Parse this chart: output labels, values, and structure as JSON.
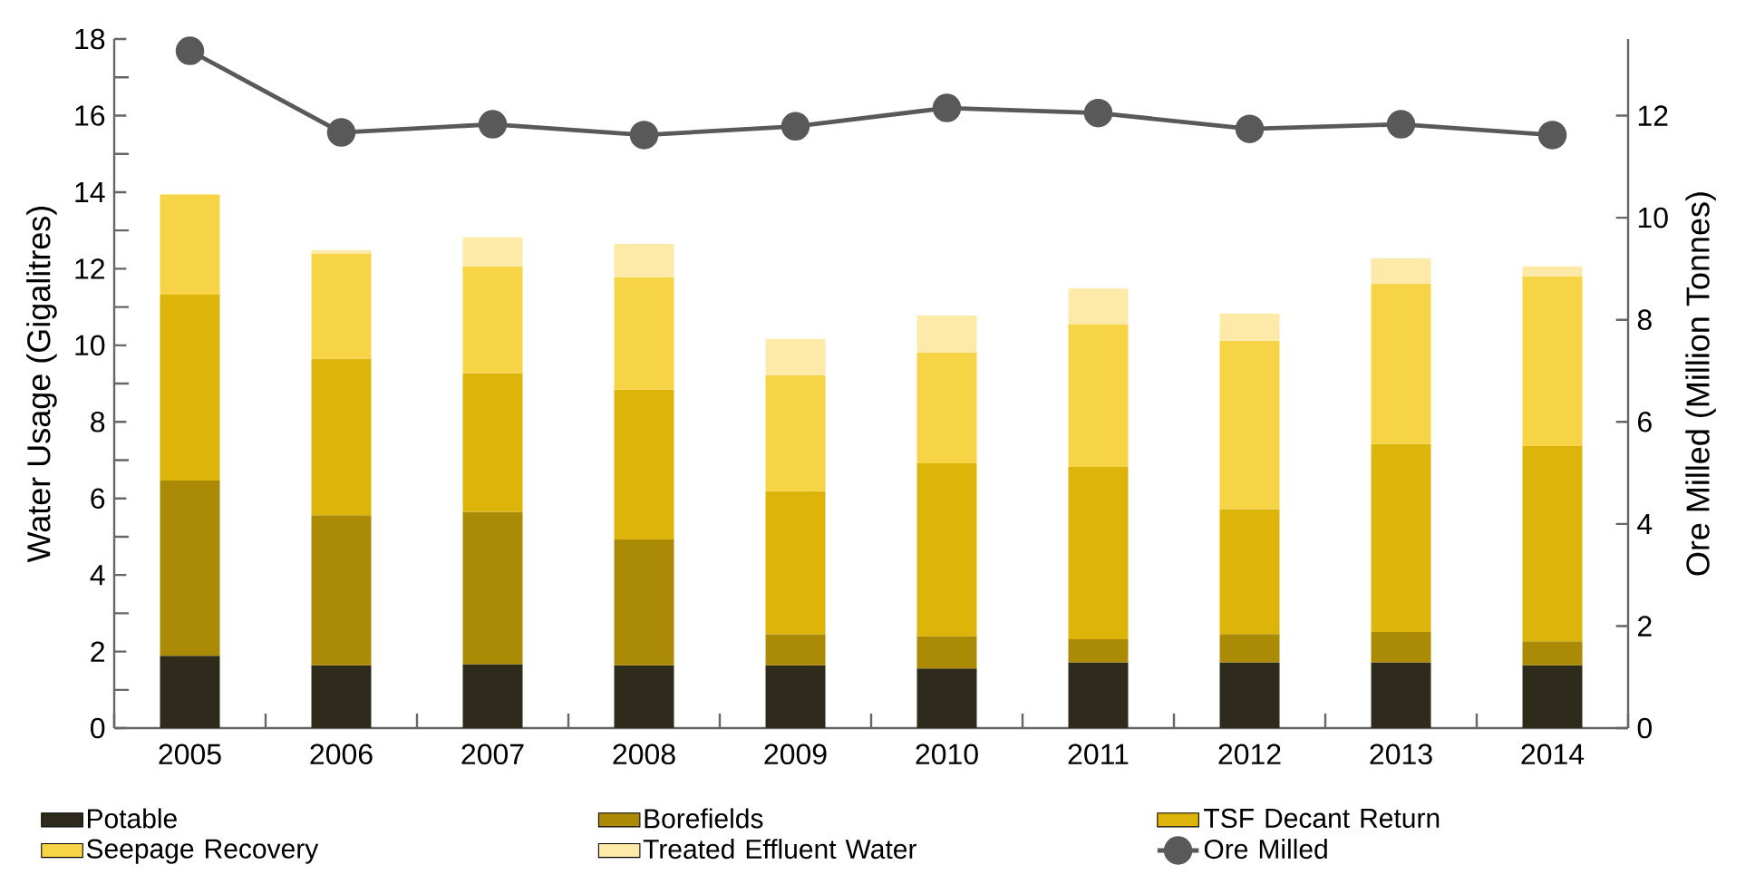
{
  "chart_data": {
    "type": "bar",
    "stacked": true,
    "categories": [
      "2005",
      "2006",
      "2007",
      "2008",
      "2009",
      "2010",
      "2011",
      "2012",
      "2013",
      "2014"
    ],
    "series": [
      {
        "name": "Potable",
        "color": "#2e2a1c",
        "values": [
          1.89,
          1.64,
          1.67,
          1.64,
          1.64,
          1.56,
          1.72,
          1.72,
          1.72,
          1.64
        ]
      },
      {
        "name": "Borefields",
        "color": "#ab8a05",
        "values": [
          4.58,
          3.92,
          3.98,
          3.29,
          0.81,
          0.84,
          0.6,
          0.74,
          0.79,
          0.63
        ]
      },
      {
        "name": "TSF Decant Return",
        "color": "#ddb40a",
        "values": [
          4.85,
          4.09,
          3.62,
          3.91,
          3.74,
          4.52,
          4.5,
          3.26,
          4.91,
          5.1
        ]
      },
      {
        "name": "Seepage Recovery",
        "color": "#f7d445",
        "values": [
          2.62,
          2.74,
          2.79,
          2.94,
          3.03,
          2.89,
          3.73,
          4.4,
          4.19,
          4.43
        ]
      },
      {
        "name": "Treated Effluent Water",
        "color": "#fdeaa8",
        "values": [
          0,
          0.1,
          0.76,
          0.87,
          0.95,
          0.97,
          0.93,
          0.71,
          0.66,
          0.26
        ]
      },
      {
        "name": "Ore Milled",
        "color": "#595959",
        "type": "line",
        "axis": "y2",
        "marker": "circle",
        "values": [
          13.27,
          11.67,
          11.83,
          11.62,
          11.79,
          12.15,
          12.05,
          11.74,
          11.83,
          11.62
        ]
      }
    ],
    "ylabel": "Water Usage (Gigalitres)",
    "y2label": "Ore Milled (Million Tonnes)",
    "ylim": [
      0,
      18
    ],
    "yticks": [
      0,
      2,
      4,
      6,
      8,
      10,
      12,
      14,
      16,
      18
    ],
    "y2lim": [
      0,
      13.5
    ],
    "y2ticks": [
      0,
      2,
      4,
      6,
      8,
      10,
      12
    ],
    "legend": "bottom"
  }
}
